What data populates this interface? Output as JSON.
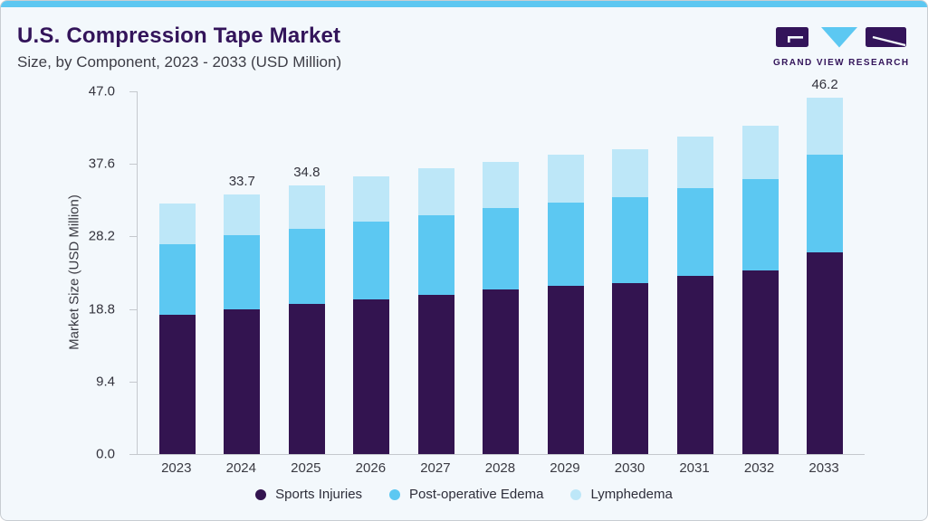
{
  "page": {
    "title": "U.S. Compression Tape Market",
    "subtitle": "Size, by Component, 2023 - 2033 (USD Million)"
  },
  "logo": {
    "text": "GRAND VIEW RESEARCH"
  },
  "chart_data": {
    "type": "bar",
    "stacked": true,
    "title": "U.S. Compression Tape Market",
    "subtitle": "Size, by Component, 2023 - 2033 (USD Million)",
    "xlabel": "",
    "ylabel": "Market Size (USD Million)",
    "ylim": [
      0,
      47.0
    ],
    "ytick_labels": [
      "0.0",
      "9.4",
      "18.8",
      "28.2",
      "37.6",
      "47.0"
    ],
    "grid": false,
    "legend_position": "bottom",
    "categories": [
      "2023",
      "2024",
      "2025",
      "2026",
      "2027",
      "2028",
      "2029",
      "2030",
      "2031",
      "2032",
      "2033"
    ],
    "series": [
      {
        "name": "Sports Injuries",
        "color": "#331450",
        "values": [
          18.0,
          18.7,
          19.4,
          20.0,
          20.6,
          21.3,
          21.8,
          22.2,
          23.1,
          23.8,
          26.1
        ]
      },
      {
        "name": "Post-operative Edema",
        "color": "#5cc8f2",
        "values": [
          9.2,
          9.7,
          9.8,
          10.1,
          10.4,
          10.6,
          10.8,
          11.1,
          11.4,
          11.8,
          12.7
        ]
      },
      {
        "name": "Lymphedema",
        "color": "#bde7f8",
        "values": [
          5.3,
          5.3,
          5.6,
          5.9,
          6.0,
          6.0,
          6.2,
          6.2,
          6.6,
          6.9,
          7.4
        ]
      }
    ],
    "totals": [
      32.5,
      33.7,
      34.8,
      36.0,
      37.0,
      37.9,
      38.8,
      39.5,
      41.1,
      42.5,
      46.2
    ],
    "bar_labels": [
      "",
      "33.7",
      "34.8",
      "",
      "",
      "",
      "",
      "",
      "",
      "",
      "46.2"
    ]
  },
  "colors": {
    "background": "#f3f8fc",
    "top_strip": "#5dc7f1",
    "card_border": "#c8cdd2",
    "title_text": "#33145a",
    "body_text": "#3d3d46",
    "axis_line": "#c5c9ce",
    "tick_text": "#33333d"
  }
}
